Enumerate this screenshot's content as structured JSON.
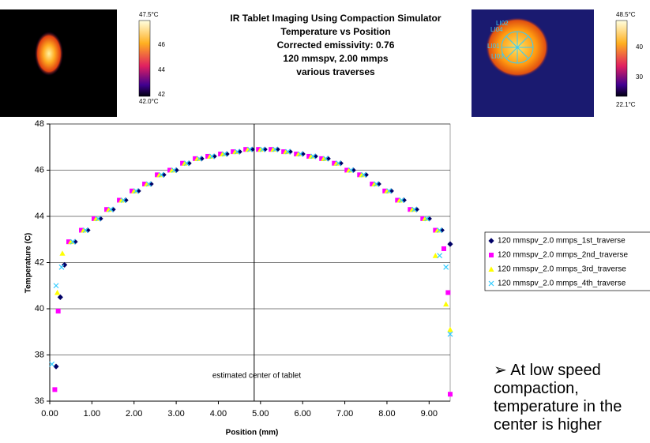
{
  "chart_data": {
    "type": "scatter",
    "title": [
      "IR Tablet Imaging Using Compaction Simulator",
      "Temperature vs Position",
      "Corrected emissivity: 0.76",
      "120 mmspv, 2.00 mmps",
      "various traverses"
    ],
    "x_label": "Position (mm)",
    "y_label": "Temperature (C)",
    "xlim": [
      0,
      9.5
    ],
    "ylim": [
      36,
      48
    ],
    "xticks": [
      {
        "value": 0,
        "label": "0.00"
      },
      {
        "value": 1,
        "label": "1.00"
      },
      {
        "value": 2,
        "label": "2.00"
      },
      {
        "value": 3,
        "label": "3.00"
      },
      {
        "value": 4,
        "label": "4.00"
      },
      {
        "value": 5,
        "label": "5.00"
      },
      {
        "value": 6,
        "label": "6.00"
      },
      {
        "value": 7,
        "label": "7.00"
      },
      {
        "value": 8,
        "label": "8.00"
      },
      {
        "value": 9,
        "label": "9.00"
      }
    ],
    "yticks": [
      36,
      38,
      40,
      42,
      44,
      46,
      48
    ],
    "grid": true,
    "annotation": "estimated center of tablet",
    "center_line_x": 4.85,
    "series": [
      {
        "name": "120 mmspv_2.0 mmps_1st_traverse",
        "color": "#000066",
        "marker": "diamond",
        "x": [
          0.15,
          0.25,
          0.35,
          0.6,
          0.9,
          1.2,
          1.5,
          1.8,
          2.1,
          2.4,
          2.7,
          3.0,
          3.3,
          3.6,
          3.9,
          4.2,
          4.5,
          4.8,
          5.1,
          5.4,
          5.7,
          6.0,
          6.3,
          6.6,
          6.9,
          7.2,
          7.5,
          7.8,
          8.1,
          8.4,
          8.7,
          9.0,
          9.3,
          9.5
        ],
        "values": [
          37.5,
          40.5,
          41.9,
          42.9,
          43.4,
          43.9,
          44.3,
          44.7,
          45.1,
          45.4,
          45.8,
          46.0,
          46.3,
          46.5,
          46.6,
          46.7,
          46.8,
          46.9,
          46.9,
          46.9,
          46.8,
          46.7,
          46.6,
          46.5,
          46.3,
          46.0,
          45.8,
          45.4,
          45.1,
          44.7,
          44.3,
          43.9,
          43.4,
          42.8
        ]
      },
      {
        "name": "120 mmspv_2.0 mmps_2nd_traverse",
        "color": "#ff00ff",
        "marker": "square",
        "x": [
          0.12,
          0.2,
          0.45,
          0.75,
          1.05,
          1.35,
          1.65,
          1.95,
          2.25,
          2.55,
          2.85,
          3.15,
          3.45,
          3.75,
          4.05,
          4.35,
          4.65,
          4.95,
          5.25,
          5.55,
          5.85,
          6.15,
          6.45,
          6.75,
          7.05,
          7.35,
          7.65,
          7.95,
          8.25,
          8.55,
          8.85,
          9.15,
          9.35,
          9.45,
          9.5
        ],
        "values": [
          36.5,
          39.9,
          42.9,
          43.4,
          43.9,
          44.3,
          44.7,
          45.1,
          45.4,
          45.8,
          46.0,
          46.3,
          46.5,
          46.6,
          46.7,
          46.8,
          46.9,
          46.9,
          46.9,
          46.8,
          46.7,
          46.6,
          46.5,
          46.3,
          46.0,
          45.8,
          45.4,
          45.1,
          44.7,
          44.3,
          43.9,
          43.4,
          42.6,
          40.7,
          36.3
        ]
      },
      {
        "name": "120 mmspv_2.0 mmps_3rd_traverse",
        "color": "#ffff00",
        "marker": "triangle",
        "x": [
          0.18,
          0.3,
          0.5,
          0.8,
          1.1,
          1.4,
          1.7,
          2.0,
          2.3,
          2.6,
          2.9,
          3.2,
          3.5,
          3.8,
          4.1,
          4.4,
          4.7,
          5.0,
          5.3,
          5.6,
          5.9,
          6.2,
          6.5,
          6.8,
          7.1,
          7.4,
          7.7,
          8.0,
          8.3,
          8.6,
          8.9,
          9.2,
          9.15,
          9.4,
          9.5
        ],
        "values": [
          40.7,
          42.4,
          42.9,
          43.4,
          43.9,
          44.3,
          44.7,
          45.1,
          45.4,
          45.8,
          46.0,
          46.3,
          46.5,
          46.6,
          46.7,
          46.8,
          46.9,
          46.9,
          46.9,
          46.8,
          46.7,
          46.6,
          46.5,
          46.3,
          46.0,
          45.8,
          45.4,
          45.1,
          44.7,
          44.3,
          43.9,
          43.4,
          42.3,
          40.2,
          39.1
        ]
      },
      {
        "name": "120 mmspv_2.0 mmps_4th_traverse",
        "color": "#33ccff",
        "marker": "x",
        "x": [
          0.05,
          0.15,
          0.28,
          0.55,
          0.85,
          1.15,
          1.45,
          1.75,
          2.05,
          2.35,
          2.65,
          2.95,
          3.25,
          3.55,
          3.85,
          4.15,
          4.45,
          4.75,
          5.05,
          5.35,
          5.65,
          5.95,
          6.25,
          6.55,
          6.85,
          7.15,
          7.45,
          7.75,
          8.05,
          8.35,
          8.65,
          8.95,
          9.25,
          9.25,
          9.4,
          9.5
        ],
        "values": [
          37.6,
          41.0,
          41.8,
          42.9,
          43.4,
          43.9,
          44.3,
          44.7,
          45.1,
          45.4,
          45.8,
          46.0,
          46.3,
          46.5,
          46.6,
          46.7,
          46.8,
          46.9,
          46.9,
          46.9,
          46.8,
          46.7,
          46.6,
          46.5,
          46.3,
          46.0,
          45.8,
          45.4,
          45.1,
          44.7,
          44.3,
          43.9,
          43.4,
          42.3,
          41.8,
          38.9
        ]
      }
    ]
  },
  "note": "At low speed compaction, temperature in the center is higher",
  "left_scale": {
    "max": "47.5°C",
    "min": "42.0°C",
    "ticks": [
      "46",
      "44",
      "42"
    ]
  },
  "right_scale": {
    "max": "48.5°C",
    "min": "22.1°C",
    "ticks": [
      "40",
      "30"
    ]
  },
  "roi_labels": [
    "LI02",
    "LI04",
    "LI01",
    "LI03"
  ]
}
